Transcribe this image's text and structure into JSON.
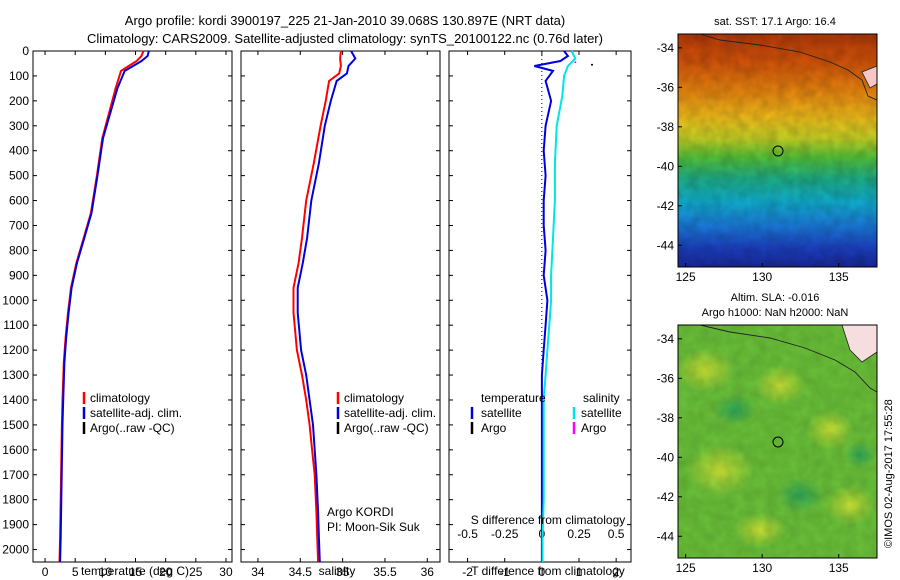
{
  "title": {
    "line1": "Argo profile: kordi 3900197_225 21-Jan-2010 39.068S 130.897E (NRT data)",
    "line2": "Climatology: CARS2009. Satellite-adjusted climatology: synTS_20100122.nc (0.76d later)"
  },
  "colors": {
    "climatology": "#ff0000",
    "satellite": "#0000dd",
    "argo": "#000000",
    "satellite_salinity": "#00e5e5",
    "argo_salinity": "#ff00ff"
  },
  "chart_data": [
    {
      "type": "line",
      "panel": "temperature",
      "xlabel": "temperature (deg C)",
      "ylabel": "",
      "xlim": [
        -2,
        31
      ],
      "ylim": [
        2050,
        0
      ],
      "xticks": [
        "0",
        "5",
        "10",
        "15",
        "20",
        "25",
        "30"
      ],
      "yticks": [
        "0",
        "100",
        "200",
        "300",
        "400",
        "500",
        "600",
        "700",
        "800",
        "900",
        "1000",
        "1100",
        "1200",
        "1300",
        "1400",
        "1500",
        "1600",
        "1700",
        "1800",
        "1900",
        "2000"
      ],
      "legend": [
        "climatology",
        "satellite-adj. clim.",
        "Argo(..raw -QC)"
      ],
      "series": [
        {
          "name": "climatology",
          "x": [
            16.3,
            16.0,
            15.2,
            12.6,
            11.7,
            10.6,
            9.5,
            8.6,
            7.6,
            6.4,
            5.2,
            4.3,
            3.8,
            3.4,
            3.1,
            2.9,
            2.8,
            2.7,
            2.6,
            2.5,
            2.4
          ],
          "y": [
            0,
            20,
            40,
            80,
            150,
            250,
            350,
            500,
            650,
            750,
            850,
            950,
            1050,
            1150,
            1250,
            1400,
            1500,
            1650,
            1800,
            1950,
            2050
          ]
        },
        {
          "name": "satellite-adj. clim.",
          "x": [
            17.2,
            17.0,
            16.0,
            13.2,
            12.0,
            10.8,
            9.6,
            8.7,
            7.7,
            6.5,
            5.3,
            4.4,
            3.9,
            3.5,
            3.2,
            3.0,
            2.9,
            2.8,
            2.7,
            2.6,
            2.5
          ],
          "y": [
            0,
            20,
            40,
            80,
            150,
            250,
            350,
            500,
            650,
            750,
            850,
            950,
            1050,
            1150,
            1250,
            1400,
            1500,
            1650,
            1800,
            1950,
            2050
          ]
        }
      ]
    },
    {
      "type": "line",
      "panel": "salinity",
      "xlabel": "salinity",
      "xlim": [
        33.8,
        36.15
      ],
      "ylim": [
        2050,
        0
      ],
      "xticks": [
        "34",
        "34.5",
        "35",
        "35.5",
        "36"
      ],
      "legend": [
        "climatology",
        "satellite-adj. clim.",
        "Argo(..raw -QC)"
      ],
      "annotation": [
        "Argo KORDI",
        "PI: Moon-Sik Suk"
      ],
      "series": [
        {
          "name": "climatology",
          "x": [
            34.98,
            34.97,
            34.98,
            34.96,
            34.84,
            34.8,
            34.74,
            34.66,
            34.57,
            34.52,
            34.48,
            34.42,
            34.42,
            34.46,
            34.52,
            34.57,
            34.61,
            34.64,
            34.67,
            34.69,
            34.7,
            34.71
          ],
          "y": [
            0,
            30,
            60,
            90,
            120,
            200,
            300,
            450,
            600,
            750,
            850,
            950,
            1050,
            1200,
            1300,
            1400,
            1500,
            1600,
            1700,
            1850,
            1950,
            2050
          ]
        },
        {
          "name": "satellite-adj. clim.",
          "x": [
            35.1,
            35.15,
            35.07,
            35.05,
            34.93,
            34.86,
            34.79,
            34.72,
            34.63,
            34.58,
            34.53,
            34.47,
            34.47,
            34.51,
            34.57,
            34.61,
            34.65,
            34.67,
            34.69,
            34.71,
            34.72,
            34.73
          ],
          "y": [
            0,
            30,
            60,
            90,
            120,
            200,
            300,
            450,
            600,
            750,
            850,
            950,
            1050,
            1200,
            1300,
            1400,
            1500,
            1600,
            1700,
            1850,
            1950,
            2050
          ]
        }
      ]
    },
    {
      "type": "line",
      "panel": "difference",
      "xlabel": "T difference from climatology",
      "xlabel2": "S difference from climatology",
      "xlim": [
        -2.5,
        2.4
      ],
      "ylim": [
        2050,
        0
      ],
      "xticks": [
        "-2",
        "-1",
        "0",
        "1",
        "2"
      ],
      "xticks2": [
        "-0.5",
        "-0.25",
        "0",
        "0.25",
        "0.5"
      ],
      "legend_left_title": "temperature",
      "legend_right_title": "salinity",
      "legend_left": [
        "satellite",
        "Argo"
      ],
      "legend_right": [
        "satellite",
        "Argo"
      ],
      "series": [
        {
          "name": "satellite",
          "x": [
            0.6,
            0.7,
            0.5,
            -0.2,
            0.3,
            0.1,
            0.25,
            0.1,
            0.05,
            0.1,
            0.05,
            0.05,
            0.1,
            0.05,
            0.15,
            0.1,
            0.05,
            0.0,
            0.0,
            0.0,
            0.0,
            0.0,
            0.0,
            0.0
          ],
          "y": [
            0,
            20,
            40,
            60,
            80,
            120,
            200,
            300,
            400,
            500,
            600,
            700,
            800,
            900,
            1000,
            1100,
            1200,
            1300,
            1400,
            1500,
            1600,
            1800,
            1950,
            2050
          ]
        },
        {
          "name": "satellite",
          "x": [
            0.8,
            0.9,
            0.7,
            0.6,
            0.55,
            0.4,
            0.35,
            0.35,
            0.3,
            0.25,
            0.25,
            0.2,
            0.15,
            0.1,
            0.05,
            0.05,
            0.05,
            0.05,
            0.02,
            0.02
          ],
          "y": [
            0,
            30,
            60,
            100,
            180,
            300,
            450,
            600,
            750,
            900,
            1000,
            1100,
            1200,
            1300,
            1400,
            1500,
            1600,
            1800,
            1950,
            2050
          ]
        }
      ]
    },
    {
      "type": "heatmap",
      "panel": "sst_map",
      "title": "sat. SST: 17.1  Argo: 16.4",
      "xticks": [
        "125",
        "130",
        "135"
      ],
      "yticks": [
        "-34",
        "-36",
        "-38",
        "-40",
        "-42",
        "-44"
      ],
      "marker": {
        "x": 130.9,
        "y": -39.07
      }
    },
    {
      "type": "heatmap",
      "panel": "sla_map",
      "title": "Altim. SLA: -0.016",
      "title2": "Argo h1000: NaN h2000: NaN",
      "xticks": [
        "125",
        "130",
        "135"
      ],
      "yticks": [
        "-34",
        "-36",
        "-38",
        "-40",
        "-42",
        "-44"
      ],
      "marker": {
        "x": 130.9,
        "y": -39.07
      }
    }
  ],
  "credit": "©IMOS 02-Aug-2017 17:55:28"
}
